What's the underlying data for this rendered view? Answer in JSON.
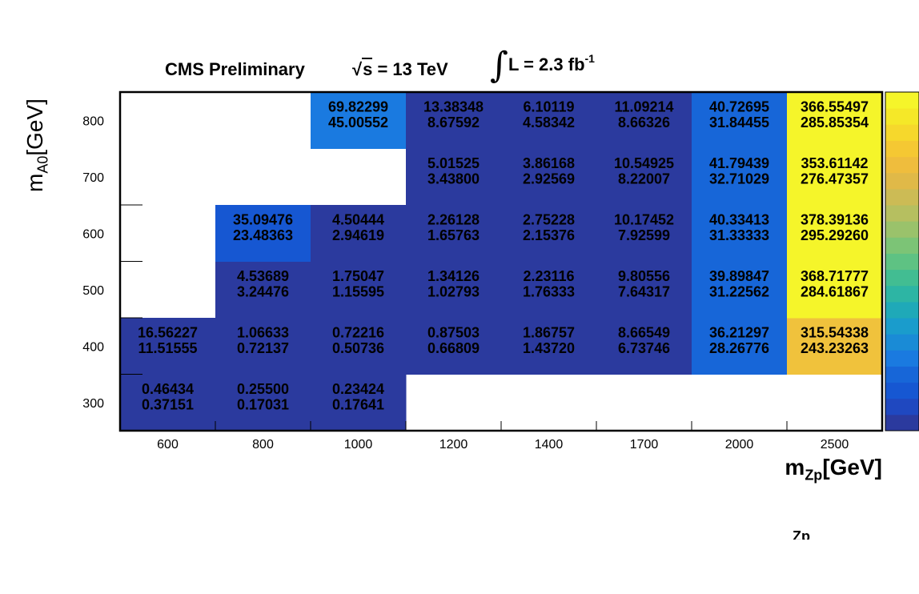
{
  "header": {
    "experiment": "CMS Preliminary",
    "energy_sqrt": "s",
    "energy_value": " = 13 TeV",
    "lumi_text": "L = 2.3 fb",
    "lumi_sup": "-1"
  },
  "axes": {
    "y_main": "m",
    "y_sub": "A0",
    "y_unit": "[GeV]",
    "x_main": "m",
    "x_sub": "Zp",
    "x_unit": "[GeV]"
  },
  "stray_text": "Zp",
  "chart_data": {
    "type": "heatmap",
    "x_categories": [
      "600",
      "800",
      "1000",
      "1200",
      "1400",
      "1700",
      "2000",
      "2500"
    ],
    "y_categories": [
      "300",
      "400",
      "500",
      "600",
      "700",
      "800"
    ],
    "cells": [
      {
        "x": "600",
        "y": "300",
        "v1": "0.46434",
        "v2": "0.37151",
        "color": "#2b3a9e"
      },
      {
        "x": "800",
        "y": "300",
        "v1": "0.25500",
        "v2": "0.17031",
        "color": "#2b3a9e"
      },
      {
        "x": "1000",
        "y": "300",
        "v1": "0.23424",
        "v2": "0.17641",
        "color": "#2b3a9e"
      },
      {
        "x": "600",
        "y": "400",
        "v1": "16.56227",
        "v2": "11.51555",
        "color": "#2b3a9e"
      },
      {
        "x": "800",
        "y": "400",
        "v1": "1.06633",
        "v2": "0.72137",
        "color": "#2b3a9e"
      },
      {
        "x": "1000",
        "y": "400",
        "v1": "0.72216",
        "v2": "0.50736",
        "color": "#2b3a9e"
      },
      {
        "x": "1200",
        "y": "400",
        "v1": "0.87503",
        "v2": "0.66809",
        "color": "#2b3a9e"
      },
      {
        "x": "1400",
        "y": "400",
        "v1": "1.86757",
        "v2": "1.43720",
        "color": "#2b3a9e"
      },
      {
        "x": "1700",
        "y": "400",
        "v1": "8.66549",
        "v2": "6.73746",
        "color": "#2b3a9e"
      },
      {
        "x": "2000",
        "y": "400",
        "v1": "36.21297",
        "v2": "28.26776",
        "color": "#1766d8"
      },
      {
        "x": "2500",
        "y": "400",
        "v1": "315.54338",
        "v2": "243.23263",
        "color": "#f0c23c"
      },
      {
        "x": "800",
        "y": "500",
        "v1": "4.53689",
        "v2": "3.24476",
        "color": "#2b3a9e"
      },
      {
        "x": "1000",
        "y": "500",
        "v1": "1.75047",
        "v2": "1.15595",
        "color": "#2b3a9e"
      },
      {
        "x": "1200",
        "y": "500",
        "v1": "1.34126",
        "v2": "1.02793",
        "color": "#2b3a9e"
      },
      {
        "x": "1400",
        "y": "500",
        "v1": "2.23116",
        "v2": "1.76333",
        "color": "#2b3a9e"
      },
      {
        "x": "1700",
        "y": "500",
        "v1": "9.80556",
        "v2": "7.64317",
        "color": "#2b3a9e"
      },
      {
        "x": "2000",
        "y": "500",
        "v1": "39.89847",
        "v2": "31.22562",
        "color": "#1766d8"
      },
      {
        "x": "2500",
        "y": "500",
        "v1": "368.71777",
        "v2": "284.61867",
        "color": "#f5f52a"
      },
      {
        "x": "800",
        "y": "600",
        "v1": "35.09476",
        "v2": "23.48363",
        "color": "#1657d2"
      },
      {
        "x": "1000",
        "y": "600",
        "v1": "4.50444",
        "v2": "2.94619",
        "color": "#2b3a9e"
      },
      {
        "x": "1200",
        "y": "600",
        "v1": "2.26128",
        "v2": "1.65763",
        "color": "#2b3a9e"
      },
      {
        "x": "1400",
        "y": "600",
        "v1": "2.75228",
        "v2": "2.15376",
        "color": "#2b3a9e"
      },
      {
        "x": "1700",
        "y": "600",
        "v1": "10.17452",
        "v2": "7.92599",
        "color": "#2b3a9e"
      },
      {
        "x": "2000",
        "y": "600",
        "v1": "40.33413",
        "v2": "31.33333",
        "color": "#1766d8"
      },
      {
        "x": "2500",
        "y": "600",
        "v1": "378.39136",
        "v2": "295.29260",
        "color": "#f5f52a"
      },
      {
        "x": "1200",
        "y": "700",
        "v1": "5.01525",
        "v2": "3.43800",
        "color": "#2b3a9e"
      },
      {
        "x": "1400",
        "y": "700",
        "v1": "3.86168",
        "v2": "2.92569",
        "color": "#2b3a9e"
      },
      {
        "x": "1700",
        "y": "700",
        "v1": "10.54925",
        "v2": "8.22007",
        "color": "#2b3a9e"
      },
      {
        "x": "2000",
        "y": "700",
        "v1": "41.79439",
        "v2": "32.71029",
        "color": "#1766d8"
      },
      {
        "x": "2500",
        "y": "700",
        "v1": "353.61142",
        "v2": "276.47357",
        "color": "#f5f52a"
      },
      {
        "x": "1000",
        "y": "800",
        "v1": "69.82299",
        "v2": "45.00552",
        "color": "#1a7ae0"
      },
      {
        "x": "1200",
        "y": "800",
        "v1": "13.38348",
        "v2": "8.67592",
        "color": "#2b3a9e"
      },
      {
        "x": "1400",
        "y": "800",
        "v1": "6.10119",
        "v2": "4.58342",
        "color": "#2b3a9e"
      },
      {
        "x": "1700",
        "y": "800",
        "v1": "11.09214",
        "v2": "8.66326",
        "color": "#2b3a9e"
      },
      {
        "x": "2000",
        "y": "800",
        "v1": "40.72695",
        "v2": "31.84455",
        "color": "#1766d8"
      },
      {
        "x": "2500",
        "y": "800",
        "v1": "366.55497",
        "v2": "285.85354",
        "color": "#f5f52a"
      }
    ],
    "palette": [
      "#2b3a9e",
      "#1f48c0",
      "#1657d2",
      "#1766d8",
      "#1a7ae0",
      "#1a8bd6",
      "#1a9ccc",
      "#1fa9b8",
      "#2db5a4",
      "#42bd92",
      "#5ec283",
      "#7cc476",
      "#9ac26b",
      "#b6bf60",
      "#ccbb55",
      "#e0b948",
      "#efbd3d",
      "#f5c833",
      "#f6d82c",
      "#f5e828",
      "#f5f52a"
    ],
    "grid": false,
    "colorbar": "right"
  }
}
